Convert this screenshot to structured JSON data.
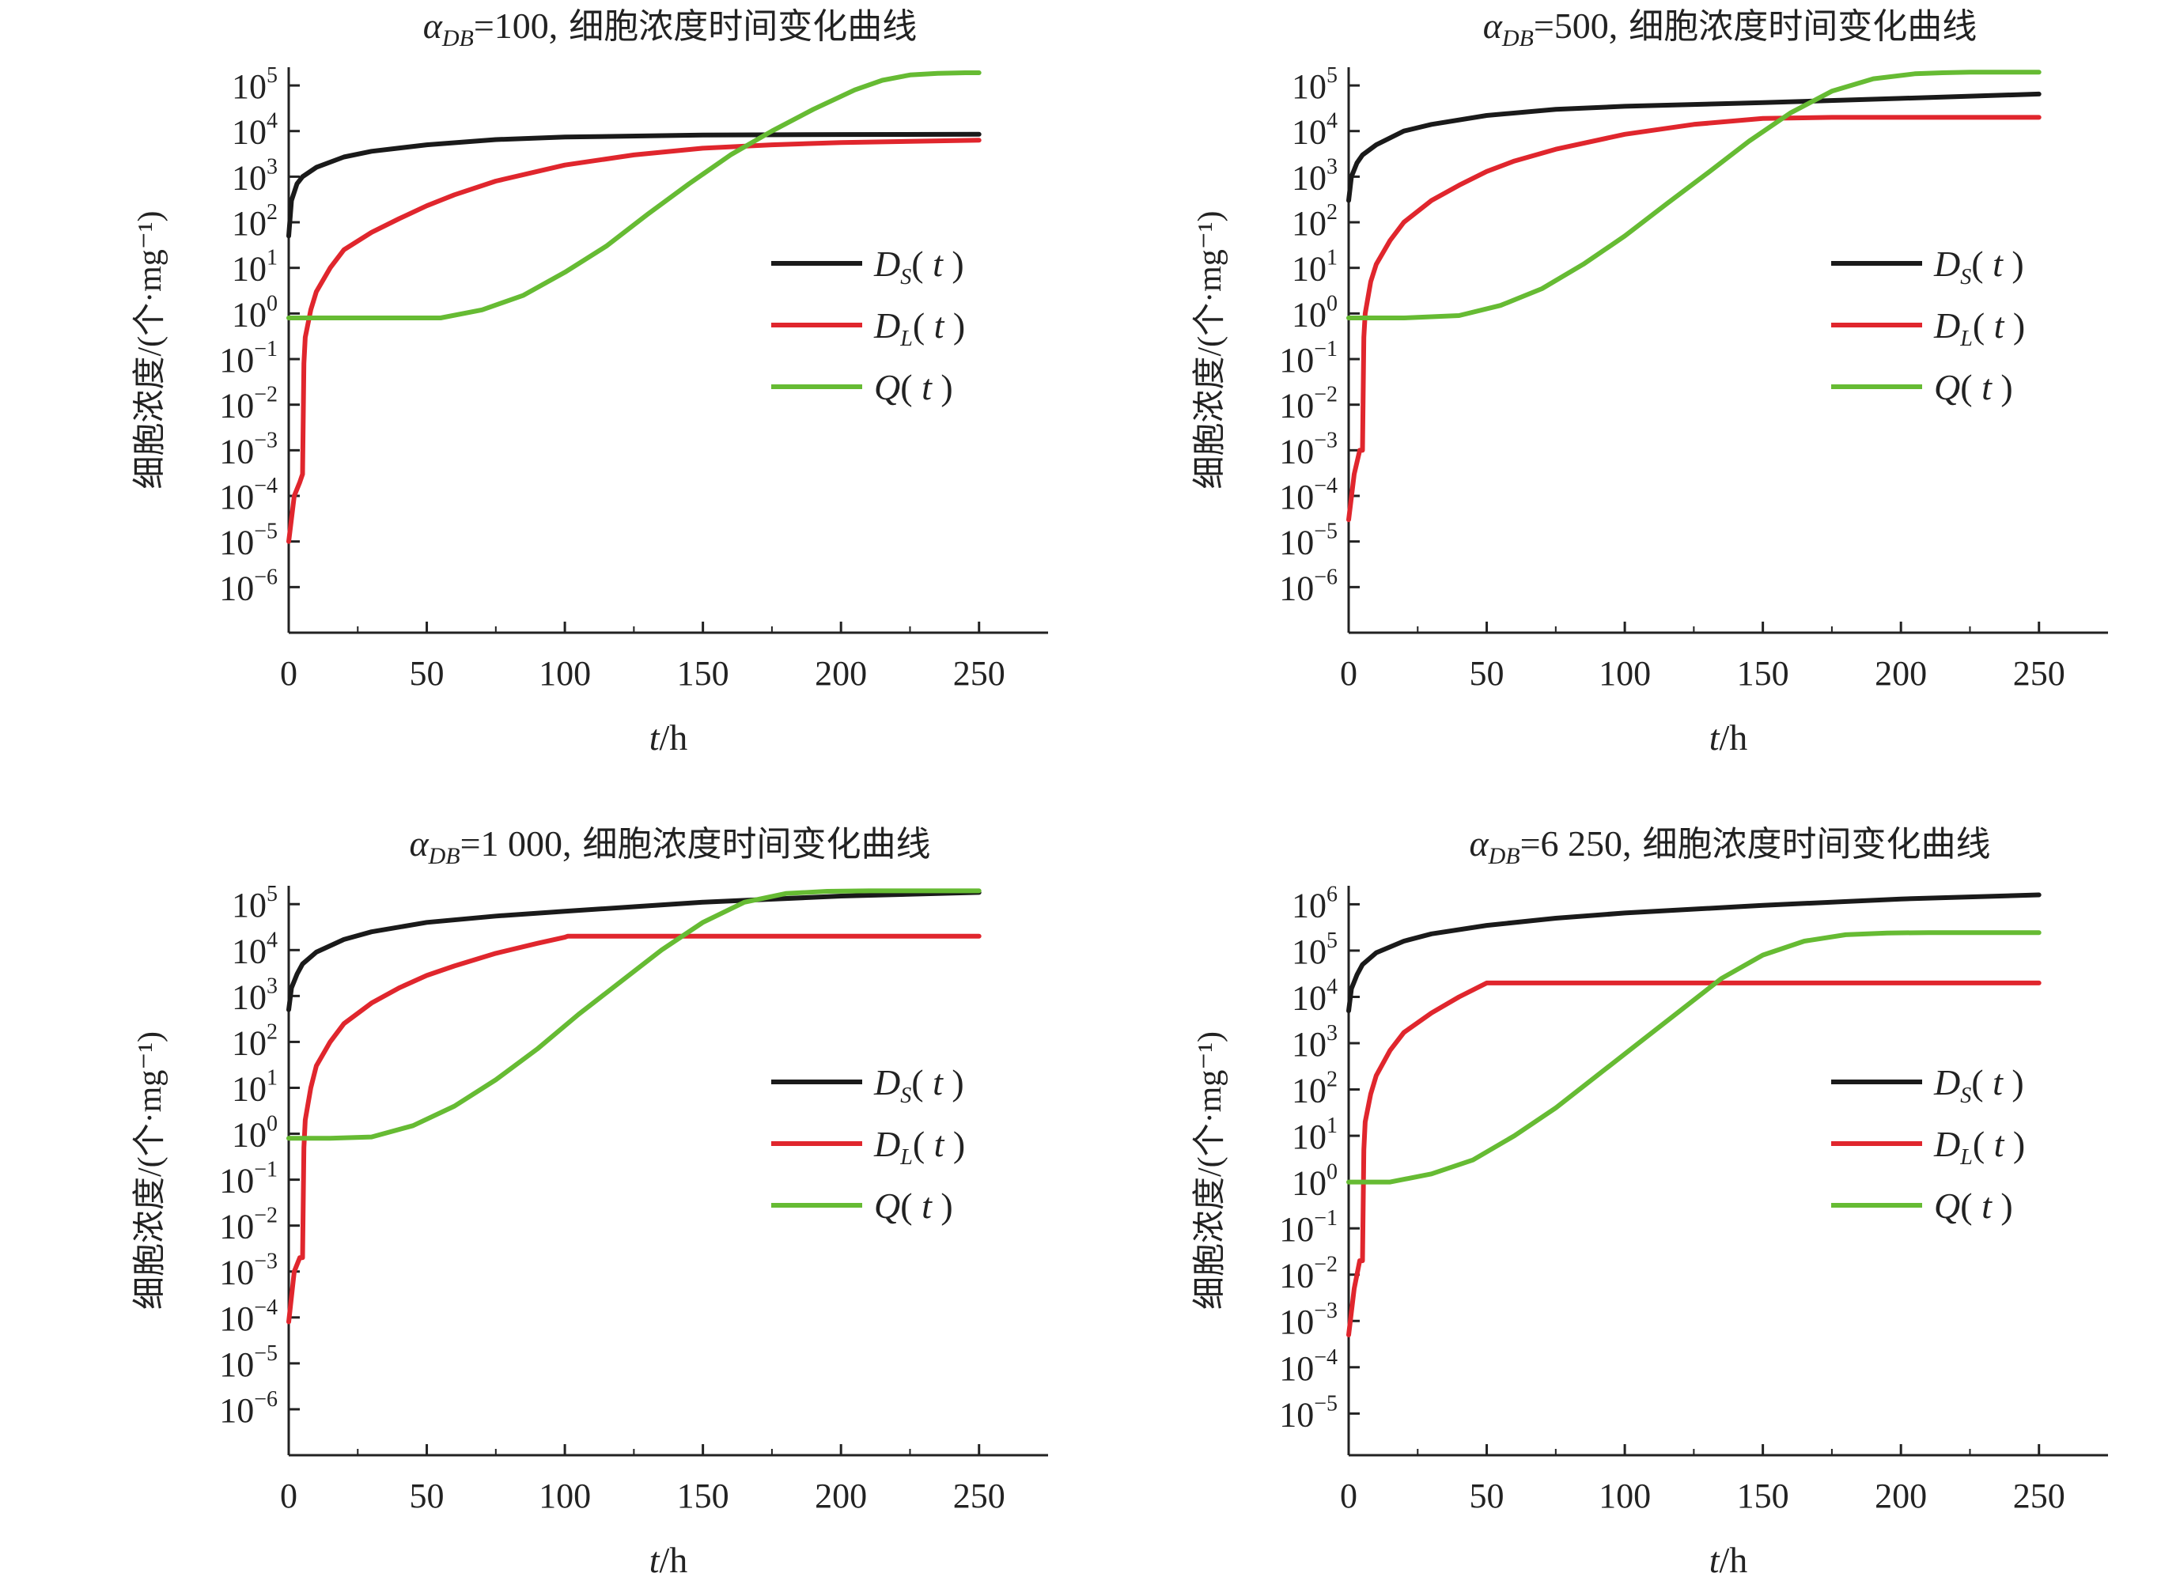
{
  "colors": {
    "axis": "#222222",
    "series": [
      "#1a1a1a",
      "#e0262d",
      "#66bb33"
    ]
  },
  "legend_labels": [
    {
      "main": "D",
      "sub": "S",
      "arg": "t"
    },
    {
      "main": "D",
      "sub": "L",
      "arg": "t"
    },
    {
      "main": "Q",
      "sub": "",
      "arg": "t"
    }
  ],
  "chart_data": [
    {
      "type": "line",
      "title_symbol": "α",
      "title_subscript": "DB",
      "title_value": "=100,",
      "title_text": "细胞浓度时间变化曲线",
      "xlabel_var": "t",
      "xlabel_unit": "/h",
      "ylabel": "细胞浓度/(个·mg⁻¹)",
      "xlim": [
        0,
        275
      ],
      "xticks": [
        0,
        50,
        100,
        150,
        200,
        250
      ],
      "yscale": "log",
      "ylim_exp": [
        -7.0,
        5.4
      ],
      "yticks_exp": [
        -6,
        -5,
        -4,
        -3,
        -2,
        -1,
        0,
        1,
        2,
        3,
        4,
        5
      ],
      "grid": false,
      "legend": "right-middle",
      "series": [
        {
          "name": "Ds(t)",
          "x": [
            0,
            1,
            3,
            5,
            10,
            20,
            30,
            50,
            75,
            100,
            150,
            200,
            250
          ],
          "y": [
            50,
            300,
            700,
            1000,
            1600,
            2700,
            3600,
            5000,
            6500,
            7400,
            8200,
            8400,
            8500
          ]
        },
        {
          "name": "DL(t)",
          "x": [
            0,
            2,
            4,
            5,
            5.5,
            6,
            8,
            10,
            15,
            20,
            30,
            40,
            50,
            60,
            75,
            100,
            125,
            150,
            175,
            200,
            250
          ],
          "y": [
            1e-05,
            0.0001,
            0.0002,
            0.0003,
            0.08,
            0.3,
            1.2,
            3,
            10,
            25,
            60,
            120,
            230,
            400,
            800,
            1800,
            3000,
            4200,
            5000,
            5600,
            6300
          ]
        },
        {
          "name": "Q(t)",
          "x": [
            0,
            25,
            55,
            70,
            85,
            100,
            115,
            130,
            145,
            160,
            175,
            190,
            205,
            215,
            225,
            235,
            245,
            250
          ],
          "y": [
            0.8,
            0.8,
            0.8,
            1.2,
            2.5,
            8,
            30,
            150,
            700,
            3000,
            10000,
            30000,
            80000,
            130000,
            170000,
            185000,
            190000,
            190000
          ]
        }
      ]
    },
    {
      "type": "line",
      "title_symbol": "α",
      "title_subscript": "DB",
      "title_value": "=500,",
      "title_text": "细胞浓度时间变化曲线",
      "xlabel_var": "t",
      "xlabel_unit": "/h",
      "ylabel": "细胞浓度/(个·mg⁻¹)",
      "xlim": [
        0,
        275
      ],
      "xticks": [
        0,
        50,
        100,
        150,
        200,
        250
      ],
      "yscale": "log",
      "ylim_exp": [
        -7.0,
        5.4
      ],
      "yticks_exp": [
        -6,
        -5,
        -4,
        -3,
        -2,
        -1,
        0,
        1,
        2,
        3,
        4,
        5
      ],
      "grid": false,
      "legend": "right-middle",
      "series": [
        {
          "name": "Ds(t)",
          "x": [
            0,
            1,
            3,
            5,
            10,
            20,
            30,
            50,
            75,
            100,
            150,
            200,
            250
          ],
          "y": [
            300,
            1000,
            2000,
            3000,
            5000,
            10000,
            14000,
            22000,
            30000,
            35000,
            42000,
            52000,
            65000
          ]
        },
        {
          "name": "DL(t)",
          "x": [
            0,
            2,
            4,
            5,
            5.5,
            6,
            8,
            10,
            15,
            20,
            30,
            40,
            50,
            60,
            75,
            100,
            125,
            150,
            175,
            200,
            250
          ],
          "y": [
            3e-05,
            0.0003,
            0.001,
            0.001,
            0.3,
            1,
            5,
            12,
            40,
            100,
            300,
            650,
            1300,
            2200,
            4000,
            8500,
            14000,
            19000,
            20000,
            20000,
            20000
          ]
        },
        {
          "name": "Q(t)",
          "x": [
            0,
            20,
            40,
            55,
            70,
            85,
            100,
            115,
            130,
            145,
            160,
            175,
            190,
            205,
            215,
            225,
            235,
            245,
            250
          ],
          "y": [
            0.8,
            0.8,
            0.9,
            1.5,
            3.5,
            12,
            50,
            250,
            1200,
            6000,
            25000,
            75000,
            140000,
            180000,
            190000,
            195000,
            195000,
            195000,
            195000
          ]
        }
      ]
    },
    {
      "type": "line",
      "title_symbol": "α",
      "title_subscript": "DB",
      "title_value": "=1 000,",
      "title_text": "细胞浓度时间变化曲线",
      "xlabel_var": "t",
      "xlabel_unit": "/h",
      "ylabel": "细胞浓度/(个·mg⁻¹)",
      "xlim": [
        0,
        275
      ],
      "xticks": [
        0,
        50,
        100,
        150,
        200,
        250
      ],
      "yscale": "log",
      "ylim_exp": [
        -7.0,
        5.4
      ],
      "yticks_exp": [
        -6,
        -5,
        -4,
        -3,
        -2,
        -1,
        0,
        1,
        2,
        3,
        4,
        5
      ],
      "grid": false,
      "legend": "right-middle",
      "series": [
        {
          "name": "Ds(t)",
          "x": [
            0,
            1,
            3,
            5,
            10,
            20,
            30,
            50,
            75,
            100,
            150,
            200,
            250
          ],
          "y": [
            500,
            1500,
            3000,
            5000,
            9000,
            17000,
            25000,
            40000,
            55000,
            70000,
            110000,
            150000,
            180000
          ]
        },
        {
          "name": "DL(t)",
          "x": [
            0,
            2,
            4,
            5,
            5.5,
            6,
            8,
            10,
            15,
            20,
            30,
            40,
            50,
            60,
            75,
            90,
            100,
            101,
            150,
            200,
            250
          ],
          "y": [
            8e-05,
            0.001,
            0.002,
            0.002,
            0.5,
            2,
            10,
            30,
            100,
            250,
            700,
            1500,
            2800,
            4500,
            8500,
            14000,
            19000,
            20000,
            20000,
            20000,
            20000
          ]
        },
        {
          "name": "Q(t)",
          "x": [
            0,
            15,
            30,
            45,
            60,
            75,
            90,
            105,
            120,
            135,
            150,
            165,
            180,
            195,
            210,
            225,
            240,
            250
          ],
          "y": [
            0.8,
            0.8,
            0.85,
            1.5,
            4,
            15,
            70,
            400,
            2000,
            10000,
            40000,
            110000,
            170000,
            190000,
            195000,
            195000,
            195000,
            195000
          ]
        }
      ]
    },
    {
      "type": "line",
      "title_symbol": "α",
      "title_subscript": "DB",
      "title_value": "=6 250,",
      "title_text": "细胞浓度时间变化曲线",
      "xlabel_var": "t",
      "xlabel_unit": "/h",
      "ylabel": "细胞浓度/(个·mg⁻¹)",
      "xlim": [
        0,
        275
      ],
      "xticks": [
        0,
        50,
        100,
        150,
        200,
        250
      ],
      "yscale": "log",
      "ylim_exp": [
        -5.9,
        6.4
      ],
      "yticks_exp": [
        -5,
        -4,
        -3,
        -2,
        -1,
        0,
        1,
        2,
        3,
        4,
        5,
        6
      ],
      "grid": false,
      "legend": "right-middle",
      "series": [
        {
          "name": "Ds(t)",
          "x": [
            0,
            1,
            3,
            5,
            10,
            20,
            30,
            50,
            75,
            100,
            150,
            200,
            250
          ],
          "y": [
            5000,
            15000,
            30000,
            50000,
            90000,
            160000,
            230000,
            350000,
            500000,
            650000,
            950000,
            1300000,
            1600000
          ]
        },
        {
          "name": "DL(t)",
          "x": [
            0,
            2,
            4,
            5,
            5.5,
            6,
            8,
            10,
            15,
            20,
            30,
            40,
            50,
            51,
            100,
            150,
            200,
            250
          ],
          "y": [
            0.0005,
            0.005,
            0.02,
            0.02,
            5,
            20,
            80,
            200,
            700,
            1700,
            4500,
            10000,
            20000,
            20000,
            20000,
            20000,
            20000,
            20000
          ]
        },
        {
          "name": "Q(t)",
          "x": [
            0,
            15,
            30,
            45,
            60,
            75,
            90,
            105,
            120,
            135,
            150,
            165,
            180,
            195,
            210,
            225,
            240,
            250
          ],
          "y": [
            1,
            1,
            1.5,
            3,
            10,
            40,
            200,
            1000,
            5000,
            25000,
            80000,
            160000,
            220000,
            240000,
            245000,
            245000,
            245000,
            245000
          ]
        }
      ]
    }
  ]
}
